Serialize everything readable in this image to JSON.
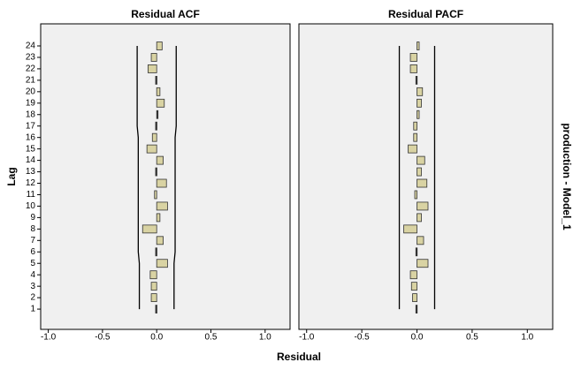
{
  "chart_data": {
    "type": "bar",
    "orientation": "horizontal",
    "y_label": "Lag",
    "x_label": "Residual",
    "row_label": "production - Model_1",
    "categories": [
      "1",
      "2",
      "3",
      "4",
      "5",
      "6",
      "7",
      "8",
      "9",
      "10",
      "11",
      "12",
      "13",
      "14",
      "15",
      "16",
      "17",
      "18",
      "19",
      "20",
      "21",
      "22",
      "23",
      "24"
    ],
    "xlim": [
      -1.07,
      1.23
    ],
    "xticks": [
      {
        "value": -1.0,
        "label": "-1.0"
      },
      {
        "value": -0.5,
        "label": "-0.5"
      },
      {
        "value": 0.0,
        "label": "0.0"
      },
      {
        "value": 0.5,
        "label": "0.5"
      },
      {
        "value": 1.0,
        "label": "1.0"
      }
    ],
    "bar_color": "#d9d3a3",
    "panel_color": "#f0f0f0",
    "panels": [
      {
        "title": "Residual ACF",
        "values": [
          -0.01,
          -0.05,
          -0.05,
          -0.06,
          0.1,
          -0.01,
          0.06,
          -0.13,
          0.03,
          0.1,
          -0.02,
          0.09,
          -0.01,
          0.06,
          -0.09,
          -0.04,
          -0.01,
          0.01,
          0.07,
          0.03,
          -0.01,
          -0.08,
          -0.05,
          0.05
        ],
        "lower_limit": [
          -0.16,
          -0.16,
          -0.16,
          -0.16,
          -0.16,
          -0.17,
          -0.17,
          -0.17,
          -0.17,
          -0.17,
          -0.17,
          -0.17,
          -0.17,
          -0.17,
          -0.17,
          -0.17,
          -0.18,
          -0.18,
          -0.18,
          -0.18,
          -0.18,
          -0.18,
          -0.18,
          -0.18
        ],
        "upper_limit": [
          0.16,
          0.16,
          0.16,
          0.16,
          0.16,
          0.17,
          0.17,
          0.17,
          0.17,
          0.17,
          0.17,
          0.17,
          0.17,
          0.17,
          0.17,
          0.17,
          0.18,
          0.18,
          0.18,
          0.18,
          0.18,
          0.18,
          0.18,
          0.18
        ]
      },
      {
        "title": "Residual PACF",
        "values": [
          -0.01,
          -0.04,
          -0.05,
          -0.06,
          0.1,
          -0.01,
          0.06,
          -0.12,
          0.04,
          0.1,
          -0.02,
          0.09,
          0.04,
          0.07,
          -0.08,
          -0.03,
          -0.03,
          0.02,
          0.04,
          0.05,
          -0.01,
          -0.06,
          -0.06,
          0.02
        ],
        "lower_limit": [
          -0.16,
          -0.16,
          -0.16,
          -0.16,
          -0.16,
          -0.16,
          -0.16,
          -0.16,
          -0.16,
          -0.16,
          -0.16,
          -0.16,
          -0.16,
          -0.16,
          -0.16,
          -0.16,
          -0.16,
          -0.16,
          -0.16,
          -0.16,
          -0.16,
          -0.16,
          -0.16,
          -0.16
        ],
        "upper_limit": [
          0.16,
          0.16,
          0.16,
          0.16,
          0.16,
          0.16,
          0.16,
          0.16,
          0.16,
          0.16,
          0.16,
          0.16,
          0.16,
          0.16,
          0.16,
          0.16,
          0.16,
          0.16,
          0.16,
          0.16,
          0.16,
          0.16,
          0.16,
          0.16
        ]
      }
    ]
  }
}
